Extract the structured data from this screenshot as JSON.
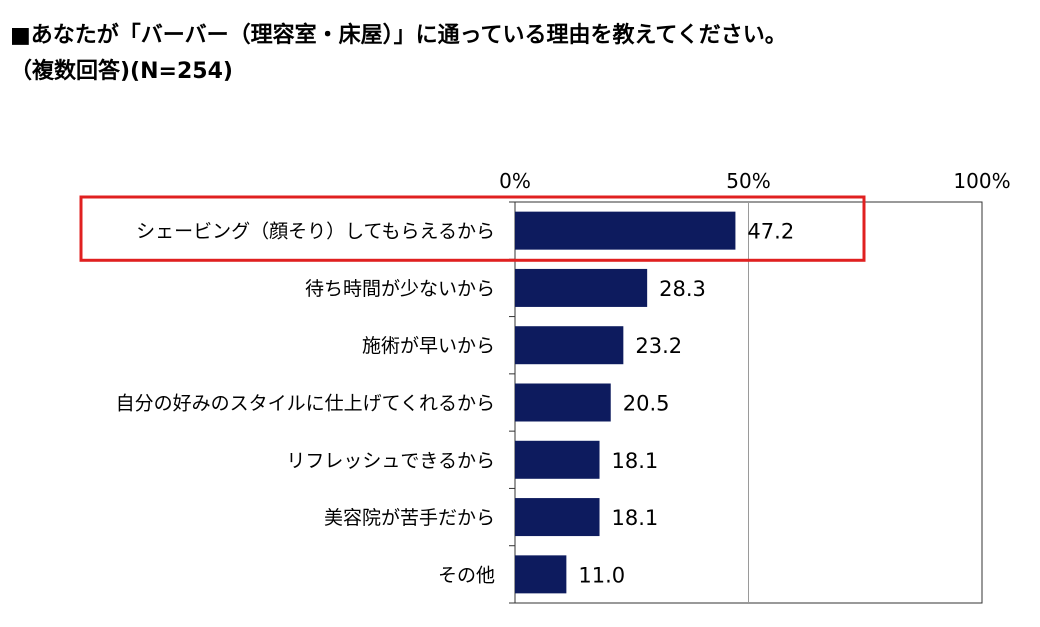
{
  "header": {
    "title": "■あなたが「バーバー（理容室・床屋）」に通っている理由を教えてください。",
    "subtitle": "（複数回答)(N=254)"
  },
  "chart_data": {
    "type": "bar",
    "orientation": "horizontal",
    "categories": [
      "シェービング（顔そり）してもらえるから",
      "待ち時間が少ないから",
      "施術が早いから",
      "自分の好みのスタイルに仕上げてくれるから",
      "リフレッシュできるから",
      "美容院が苦手だから",
      "その他"
    ],
    "values": [
      47.2,
      28.3,
      23.2,
      20.5,
      18.1,
      18.1,
      11.0
    ],
    "value_labels": [
      "47.2",
      "28.3",
      "23.2",
      "20.5",
      "18.1",
      "18.1",
      "11.0"
    ],
    "xlim": [
      0,
      100
    ],
    "x_ticks": [
      0,
      50,
      100
    ],
    "x_tick_labels": [
      "0%",
      "50%",
      "100%"
    ],
    "tick_position": "top",
    "grid": true,
    "bar_color": "#0d1b5e",
    "highlight": {
      "category_index": 0,
      "color": "#e02020"
    }
  }
}
